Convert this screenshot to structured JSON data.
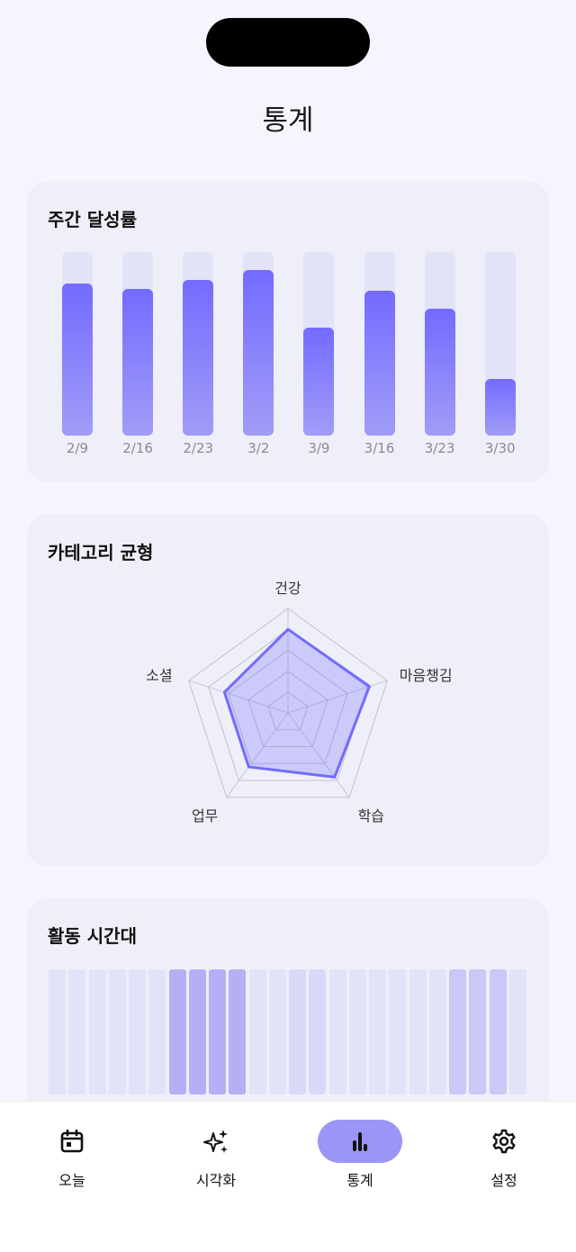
{
  "header": {
    "title": "통계"
  },
  "weekly": {
    "title": "주간 달성률",
    "bar_color": "#736bff",
    "chart_data": {
      "type": "bar",
      "categories": [
        "2/9",
        "2/16",
        "2/23",
        "3/2",
        "3/9",
        "3/16",
        "3/23",
        "3/30"
      ],
      "values": [
        83,
        80,
        85,
        90,
        59,
        79,
        69,
        31
      ],
      "ylim": [
        0,
        100
      ]
    }
  },
  "category": {
    "title": "카테고리 균형",
    "chart_data": {
      "type": "radar",
      "axes": [
        "건강",
        "마음챙김",
        "학습",
        "업무",
        "소셜"
      ],
      "values": [
        80,
        82,
        76,
        64,
        64
      ],
      "range": [
        0,
        100
      ],
      "rings": 5
    }
  },
  "activity": {
    "title": "활동 시간대",
    "chart_data": {
      "type": "heatmap",
      "hours": [
        0,
        1,
        2,
        3,
        4,
        5,
        6,
        7,
        8,
        9,
        10,
        11,
        12,
        13,
        14,
        15,
        16,
        17,
        18,
        19,
        20,
        21,
        22,
        23
      ],
      "values": [
        1,
        1,
        1,
        1,
        1,
        1,
        4,
        4,
        4,
        4,
        1,
        1,
        2,
        2,
        1,
        1,
        1,
        1,
        1,
        1,
        3,
        3,
        3,
        1
      ]
    }
  },
  "tabs": [
    {
      "label": "오늘",
      "icon": "calendar-icon"
    },
    {
      "label": "시각화",
      "icon": "sparkles-icon"
    },
    {
      "label": "통계",
      "icon": "bar-chart-icon",
      "active": true
    },
    {
      "label": "설정",
      "icon": "gear-icon"
    }
  ]
}
